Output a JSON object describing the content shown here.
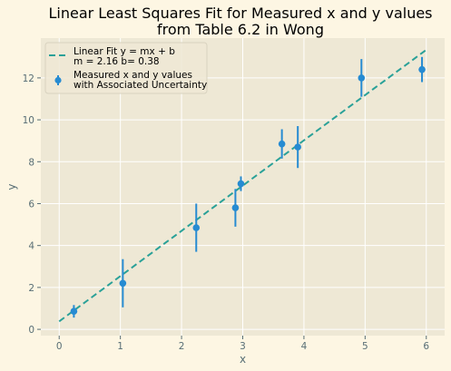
{
  "chart_data": {
    "type": "scatter",
    "title_lines": [
      "Linear Least Squares Fit for Measured x and y values",
      "from Table 6.2 in Wong"
    ],
    "xlabel": "x",
    "ylabel": "y",
    "xlim": [
      -0.3,
      6.3
    ],
    "ylim": [
      -0.3,
      13.9
    ],
    "xticks": [
      0,
      1,
      2,
      3,
      4,
      5,
      6
    ],
    "yticks": [
      0,
      2,
      4,
      6,
      8,
      10,
      12
    ],
    "grid": true,
    "legend_position": "top-left",
    "colors": {
      "background": "#fdf6e3",
      "plot_background": "#eee8d5",
      "grid": "#ffffff",
      "fit_line": "#2aa198",
      "points": "#268bd2",
      "tick_text": "#586e75"
    },
    "series": [
      {
        "name": "Measured x and y values\n with Associated Uncertainty",
        "kind": "errorbar",
        "points": [
          {
            "x": 0.24,
            "y": 0.86,
            "err": 0.3
          },
          {
            "x": 1.04,
            "y": 2.2,
            "err": 1.15
          },
          {
            "x": 2.24,
            "y": 4.85,
            "err": 1.15
          },
          {
            "x": 2.88,
            "y": 5.8,
            "err": 0.9
          },
          {
            "x": 2.97,
            "y": 6.95,
            "err": 0.35
          },
          {
            "x": 3.64,
            "y": 8.85,
            "err": 0.7
          },
          {
            "x": 3.9,
            "y": 8.7,
            "err": 1.0
          },
          {
            "x": 4.94,
            "y": 12.0,
            "err": 0.9
          },
          {
            "x": 5.93,
            "y": 12.4,
            "err": 0.6
          }
        ]
      },
      {
        "name": "Linear Fit y = mx + b\n m = 2.16 b= 0.38",
        "kind": "line",
        "style": "dashed",
        "slope": 2.16,
        "intercept": 0.38,
        "x_range": [
          0,
          6
        ]
      }
    ]
  }
}
